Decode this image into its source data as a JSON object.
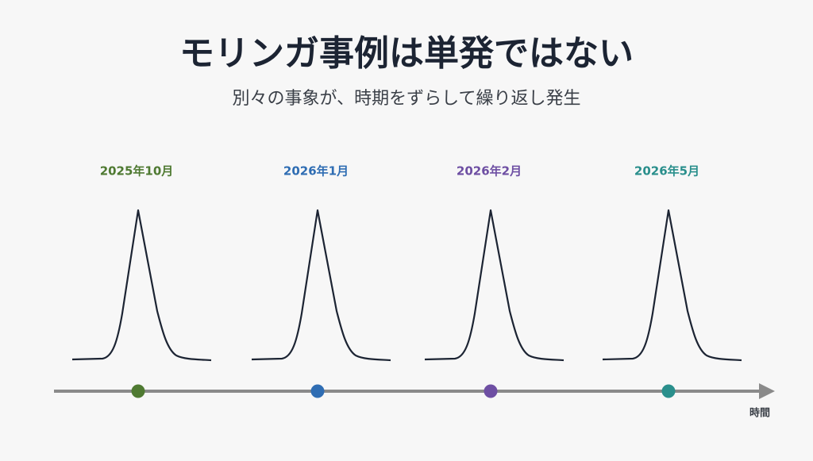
{
  "header": {
    "title": "モリンガ事例は単発ではない",
    "subtitle": "別々の事象が、時期をずらして繰り返し発生"
  },
  "events": [
    {
      "label": "2025年10月",
      "color": "#4f7a32"
    },
    {
      "label": "2026年1月",
      "color": "#2f6db3"
    },
    {
      "label": "2026年2月",
      "color": "#6e4fa3"
    },
    {
      "label": "2026年5月",
      "color": "#2a8f8c"
    }
  ],
  "axis": {
    "label": "時間"
  }
}
